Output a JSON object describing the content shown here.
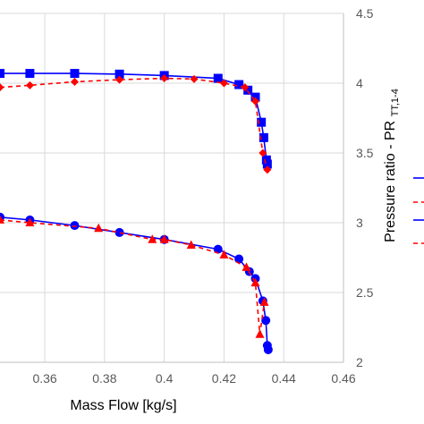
{
  "chart_data": {
    "type": "line",
    "title": "",
    "xlabel": "Mass Flow [kg/s]",
    "ylabel": "Pressure ratio - PR",
    "ylabel_subscript": "TT,1-4",
    "xlim": [
      0.345,
      0.46
    ],
    "ylim": [
      2.0,
      4.5
    ],
    "x_ticks": [
      "0.36",
      "0.38",
      "0.4",
      "0.42",
      "0.44",
      "0.46"
    ],
    "y_ticks": [
      "2",
      "2.5",
      "3",
      "3.5",
      "4",
      "4.5"
    ],
    "grid": true,
    "y_axis_side": "right",
    "legend_placement": "right (cropped)",
    "series": [
      {
        "color": "#0000ff",
        "line_style": "solid",
        "marker": "square",
        "x": [
          0.345,
          0.355,
          0.37,
          0.385,
          0.4,
          0.418,
          0.425,
          0.428,
          0.4305,
          0.4325,
          0.4333,
          0.4342,
          0.4345
        ],
        "y": [
          4.07,
          4.07,
          4.07,
          4.065,
          4.055,
          4.035,
          3.99,
          3.95,
          3.9,
          3.72,
          3.61,
          3.45,
          3.42
        ]
      },
      {
        "color": "#ff0000",
        "line_style": "dashed",
        "marker": "diamond",
        "x": [
          0.345,
          0.355,
          0.37,
          0.385,
          0.4,
          0.41,
          0.42,
          0.427,
          0.4305,
          0.433,
          0.4345
        ],
        "y": [
          3.97,
          3.985,
          4.01,
          4.025,
          4.035,
          4.03,
          4.0,
          3.97,
          3.87,
          3.5,
          3.38
        ]
      },
      {
        "color": "#0000ff",
        "line_style": "solid",
        "marker": "circle",
        "x": [
          0.345,
          0.355,
          0.37,
          0.385,
          0.4,
          0.418,
          0.425,
          0.4285,
          0.4305,
          0.433,
          0.434,
          0.4345,
          0.4348
        ],
        "y": [
          3.04,
          3.02,
          2.98,
          2.93,
          2.88,
          2.81,
          2.74,
          2.65,
          2.6,
          2.44,
          2.3,
          2.12,
          2.09
        ]
      },
      {
        "color": "#ff0000",
        "line_style": "dashed",
        "marker": "triangle",
        "x": [
          0.345,
          0.355,
          0.378,
          0.396,
          0.4,
          0.409,
          0.42,
          0.4275,
          0.4305,
          0.432,
          0.4335
        ],
        "y": [
          3.02,
          3.0,
          2.96,
          2.88,
          2.88,
          2.84,
          2.77,
          2.68,
          2.57,
          2.2,
          2.43
        ]
      }
    ]
  }
}
